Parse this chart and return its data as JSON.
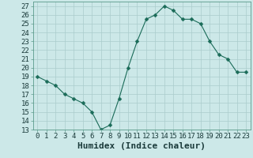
{
  "x": [
    0,
    1,
    2,
    3,
    4,
    5,
    6,
    7,
    8,
    9,
    10,
    11,
    12,
    13,
    14,
    15,
    16,
    17,
    18,
    19,
    20,
    21,
    22,
    23
  ],
  "y": [
    19,
    18.5,
    18,
    17,
    16.5,
    16,
    15,
    13,
    13.5,
    16.5,
    20,
    23,
    25.5,
    26,
    27,
    26.5,
    25.5,
    25.5,
    25,
    23,
    21.5,
    21,
    19.5,
    19.5
  ],
  "line_color": "#1a6b58",
  "marker": "D",
  "marker_size": 2.5,
  "bg_color": "#cce8e8",
  "grid_color": "#aacccc",
  "xlabel": "Humidex (Indice chaleur)",
  "xlabel_fontsize": 8,
  "ylim": [
    13,
    27.5
  ],
  "xlim": [
    -0.5,
    23.5
  ],
  "yticks": [
    13,
    14,
    15,
    16,
    17,
    18,
    19,
    20,
    21,
    22,
    23,
    24,
    25,
    26,
    27
  ],
  "xticks": [
    0,
    1,
    2,
    3,
    4,
    5,
    6,
    7,
    8,
    9,
    10,
    11,
    12,
    13,
    14,
    15,
    16,
    17,
    18,
    19,
    20,
    21,
    22,
    23
  ],
  "tick_fontsize": 6.5
}
